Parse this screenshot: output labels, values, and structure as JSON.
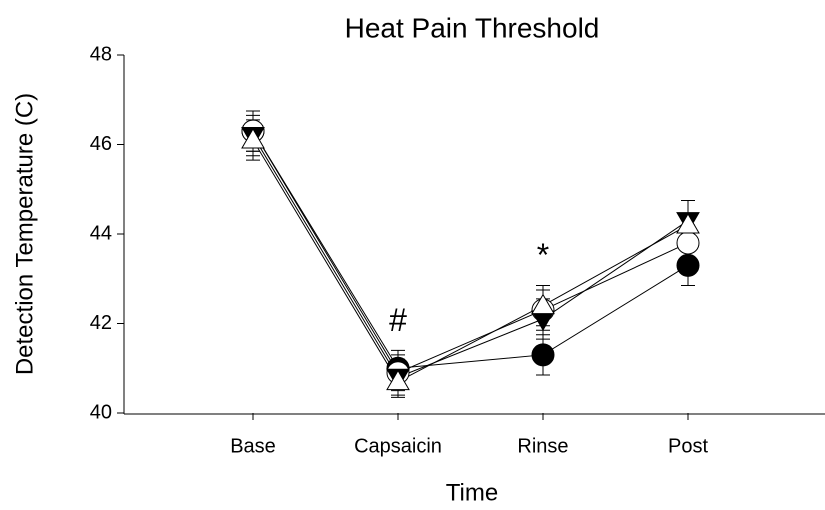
{
  "chart_data": {
    "type": "line",
    "title": "Heat Pain Threshold",
    "xlabel": "Time",
    "ylabel": "Detection Temperature (C)",
    "categories": [
      "Base",
      "Capsaicin",
      "Rinse",
      "Post"
    ],
    "ylim": [
      40,
      48
    ],
    "yticks": [
      40,
      42,
      44,
      46,
      48
    ],
    "series": [
      {
        "marker": "circle",
        "color": "#000000",
        "fill": "#000000",
        "values": [
          46.3,
          41.0,
          41.3,
          43.3
        ],
        "errors": [
          0.45,
          0.4,
          0.45,
          0.45
        ]
      },
      {
        "marker": "circle",
        "color": "#000000",
        "fill": "#ffffff",
        "values": [
          46.3,
          40.9,
          42.3,
          43.8
        ],
        "errors": [
          0.45,
          0.4,
          0.45,
          0.4
        ]
      },
      {
        "marker": "triangle-down",
        "color": "#000000",
        "fill": "#000000",
        "values": [
          46.2,
          40.8,
          42.1,
          44.3
        ],
        "errors": [
          0.45,
          0.4,
          0.45,
          0.45
        ]
      },
      {
        "marker": "triangle-up",
        "color": "#000000",
        "fill": "#ffffff",
        "values": [
          46.1,
          40.7,
          42.4,
          44.2
        ],
        "errors": [
          0.45,
          0.35,
          0.45,
          0.55
        ]
      }
    ],
    "annotations": [
      {
        "text": "#",
        "category": 1
      },
      {
        "text": "*",
        "category": 2
      }
    ]
  }
}
